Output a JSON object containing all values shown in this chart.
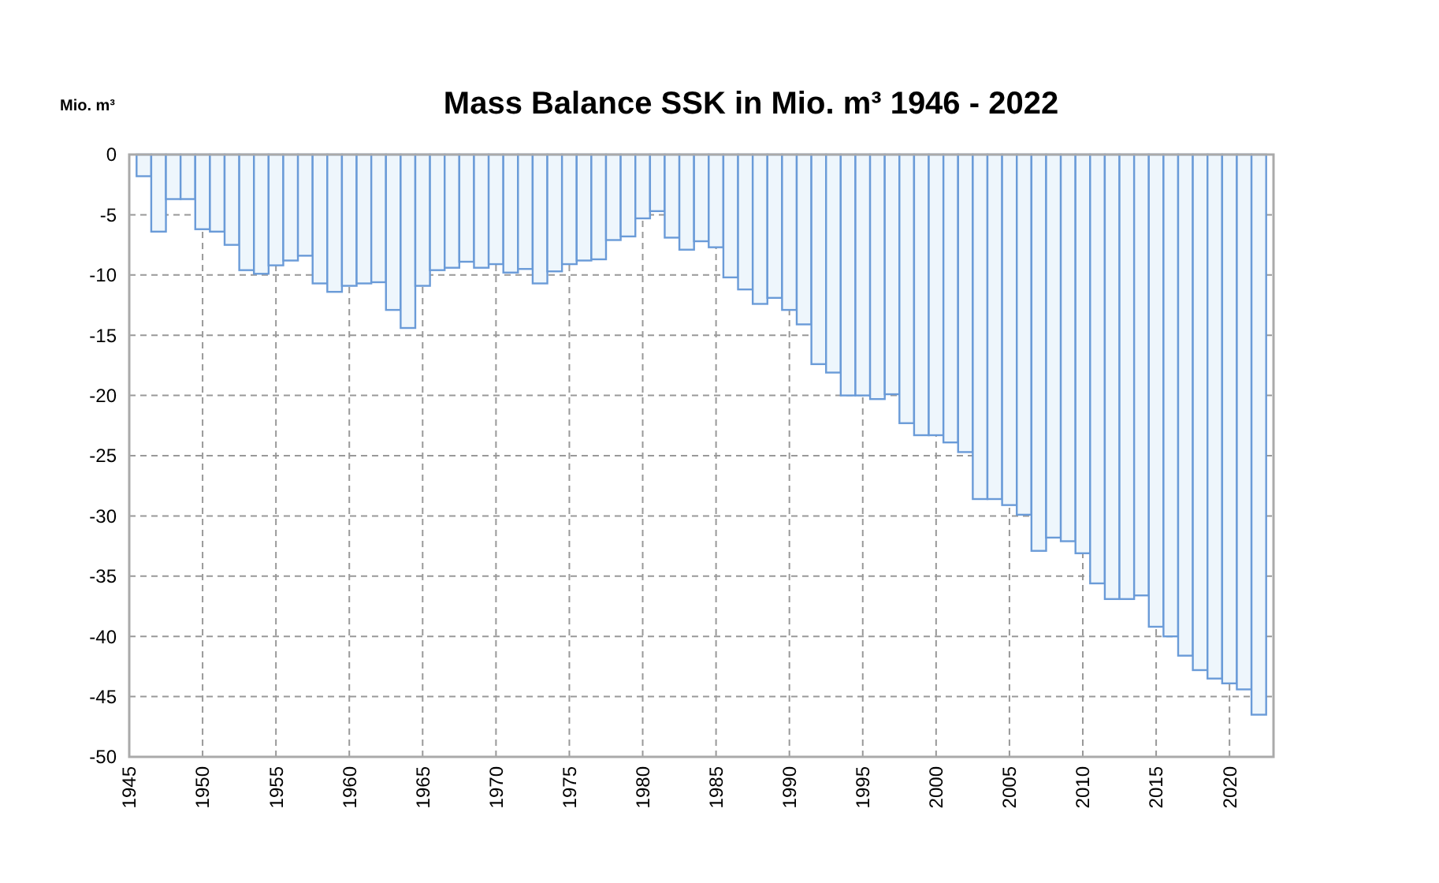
{
  "chart_data": {
    "type": "bar",
    "title": "Mass Balance SSK in Mio. m³ 1946 - 2022",
    "ylabel": "Mio. m³",
    "x": [
      1946,
      1947,
      1948,
      1949,
      1950,
      1951,
      1952,
      1953,
      1954,
      1955,
      1956,
      1957,
      1958,
      1959,
      1960,
      1961,
      1962,
      1963,
      1964,
      1965,
      1966,
      1967,
      1968,
      1969,
      1970,
      1971,
      1972,
      1973,
      1974,
      1975,
      1976,
      1977,
      1978,
      1979,
      1980,
      1981,
      1982,
      1983,
      1984,
      1985,
      1986,
      1987,
      1988,
      1989,
      1990,
      1991,
      1992,
      1993,
      1994,
      1995,
      1996,
      1997,
      1998,
      1999,
      2000,
      2001,
      2002,
      2003,
      2004,
      2005,
      2006,
      2007,
      2008,
      2009,
      2010,
      2011,
      2012,
      2013,
      2014,
      2015,
      2016,
      2017,
      2018,
      2019,
      2020,
      2021,
      2022
    ],
    "values": [
      -1.8,
      -6.4,
      -3.7,
      -3.7,
      -6.2,
      -6.4,
      -7.5,
      -9.6,
      -9.9,
      -9.2,
      -8.8,
      -8.4,
      -10.7,
      -11.4,
      -10.9,
      -10.7,
      -10.6,
      -12.9,
      -14.4,
      -10.9,
      -9.6,
      -9.4,
      -8.9,
      -9.4,
      -9.1,
      -9.8,
      -9.5,
      -10.7,
      -9.7,
      -9.1,
      -8.8,
      -8.7,
      -7.1,
      -6.8,
      -5.3,
      -4.7,
      -6.9,
      -7.9,
      -7.2,
      -7.7,
      -10.2,
      -11.2,
      -12.4,
      -11.9,
      -12.9,
      -14.1,
      -17.4,
      -18.1,
      -20.0,
      -20.0,
      -20.3,
      -19.9,
      -22.3,
      -23.3,
      -23.3,
      -23.9,
      -24.7,
      -28.6,
      -28.6,
      -29.1,
      -29.9,
      -32.9,
      -31.8,
      -32.1,
      -33.1,
      -35.6,
      -36.9,
      -36.9,
      -36.6,
      -39.2,
      -40.0,
      -41.6,
      -42.8,
      -43.5,
      -43.9,
      -44.4,
      -46.5
    ],
    "color": "#6a9bd8",
    "xlim": [
      1945,
      2023
    ],
    "xticks": [
      1945,
      1950,
      1955,
      1960,
      1965,
      1970,
      1975,
      1980,
      1985,
      1990,
      1995,
      2000,
      2005,
      2010,
      2015,
      2020
    ],
    "ylim": [
      -50,
      0
    ],
    "yticks": [
      0,
      -5,
      -10,
      -15,
      -20,
      -25,
      -30,
      -35,
      -40,
      -45,
      -50
    ],
    "grid": true
  }
}
